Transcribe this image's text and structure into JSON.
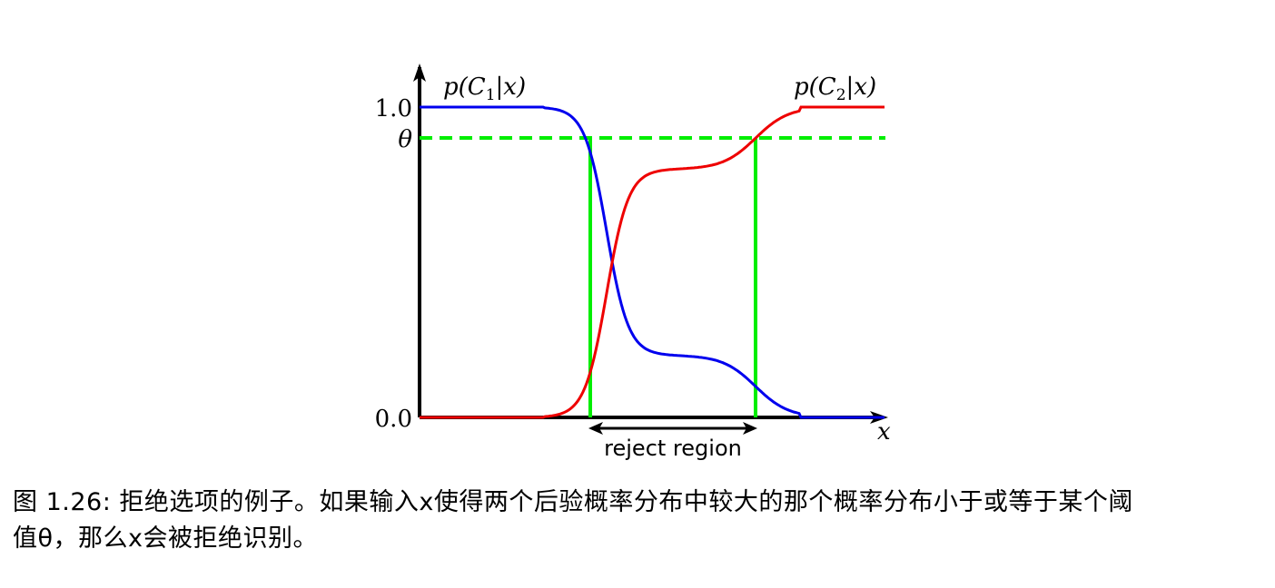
{
  "figure": {
    "y_tick_top": "1.0",
    "y_tick_theta": "θ",
    "y_tick_bottom": "0.0",
    "x_axis_label": "x",
    "curve1_label_p": "p(",
    "curve1_label_c": "C",
    "curve1_label_sub": "1",
    "curve1_label_tail": "|x)",
    "curve2_label_p": "p(",
    "curve2_label_c": "C",
    "curve2_label_sub": "2",
    "curve2_label_tail": "|x)",
    "reject_region_label": "reject region",
    "colors": {
      "curve1": "#0000ee",
      "curve2": "#ee0000",
      "threshold": "#00ee00",
      "axis": "#000000"
    }
  },
  "caption": {
    "line1": "图 1.26: 拒绝选项的例子。如果输入x使得两个后验概率分布中较大的那个概率分布小于或等于某个阈",
    "line2": "值θ，那么x会被拒绝识别。"
  }
}
